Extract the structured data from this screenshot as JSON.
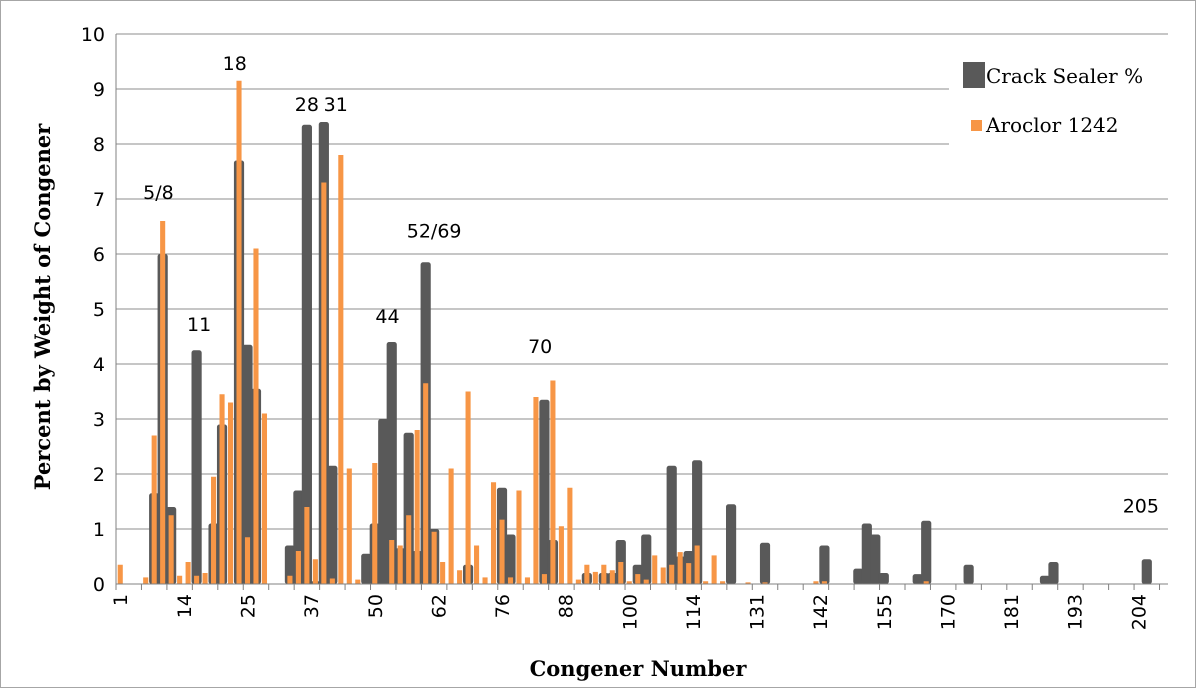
{
  "chart_data": {
    "type": "bar",
    "xlabel": "Congener Number",
    "ylabel": "Percent by Weight of Congener",
    "ylim": [
      0,
      10
    ],
    "y_ticks": [
      0,
      1,
      2,
      3,
      4,
      5,
      6,
      7,
      8,
      9,
      10
    ],
    "x_tick_labels": [
      "1",
      "14",
      "25",
      "37",
      "50",
      "62",
      "76",
      "88",
      "100",
      "114",
      "131",
      "142",
      "155",
      "170",
      "181",
      "193",
      "204"
    ],
    "grid": true,
    "legend_position": "top-right",
    "series": [
      {
        "name": "Crack Sealer %",
        "color": "#595959",
        "points": [
          [
            5,
            1.65
          ],
          [
            6,
            6.0
          ],
          [
            7,
            1.4
          ],
          [
            10,
            4.25
          ],
          [
            12,
            1.1
          ],
          [
            13,
            2.9
          ],
          [
            15,
            7.7
          ],
          [
            16,
            4.35
          ],
          [
            17,
            3.55
          ],
          [
            21,
            0.7
          ],
          [
            22,
            1.7
          ],
          [
            23,
            8.35
          ],
          [
            24,
            0.05
          ],
          [
            25,
            8.4
          ],
          [
            26,
            2.15
          ],
          [
            30,
            0.55
          ],
          [
            31,
            1.1
          ],
          [
            32,
            3.0
          ],
          [
            33,
            4.4
          ],
          [
            34,
            0.65
          ],
          [
            35,
            2.75
          ],
          [
            36,
            0.6
          ],
          [
            37,
            5.85
          ],
          [
            38,
            1.0
          ],
          [
            42,
            0.35
          ],
          [
            46,
            1.75
          ],
          [
            47,
            0.9
          ],
          [
            51,
            3.35
          ],
          [
            52,
            0.8
          ],
          [
            56,
            0.2
          ],
          [
            58,
            0.2
          ],
          [
            59,
            0.2
          ],
          [
            60,
            0.8
          ],
          [
            62,
            0.35
          ],
          [
            63,
            0.9
          ],
          [
            66,
            2.15
          ],
          [
            67,
            0.5
          ],
          [
            68,
            0.6
          ],
          [
            69,
            2.25
          ],
          [
            73,
            1.45
          ],
          [
            77,
            0.75
          ],
          [
            84,
            0.7
          ],
          [
            88,
            0.28
          ],
          [
            89,
            1.1
          ],
          [
            90,
            0.9
          ],
          [
            91,
            0.2
          ],
          [
            95,
            0.18
          ],
          [
            96,
            1.15
          ],
          [
            101,
            0.35
          ],
          [
            110,
            0.15
          ],
          [
            111,
            0.4
          ],
          [
            122,
            0.45
          ]
        ]
      },
      {
        "name": "Aroclor 1242",
        "color": "#f79646",
        "points": [
          [
            1,
            0.35
          ],
          [
            4,
            0.12
          ],
          [
            5,
            2.7
          ],
          [
            6,
            6.6
          ],
          [
            7,
            1.25
          ],
          [
            8,
            0.15
          ],
          [
            9,
            0.4
          ],
          [
            10,
            0.15
          ],
          [
            11,
            0.2
          ],
          [
            12,
            1.95
          ],
          [
            13,
            3.45
          ],
          [
            14,
            3.3
          ],
          [
            15,
            9.15
          ],
          [
            16,
            0.85
          ],
          [
            17,
            6.1
          ],
          [
            18,
            3.1
          ],
          [
            21,
            0.15
          ],
          [
            22,
            0.6
          ],
          [
            23,
            1.4
          ],
          [
            24,
            0.45
          ],
          [
            25,
            7.3
          ],
          [
            26,
            0.1
          ],
          [
            27,
            7.8
          ],
          [
            28,
            2.1
          ],
          [
            29,
            0.08
          ],
          [
            31,
            2.2
          ],
          [
            33,
            0.8
          ],
          [
            34,
            0.7
          ],
          [
            35,
            1.25
          ],
          [
            36,
            2.8
          ],
          [
            37,
            3.65
          ],
          [
            38,
            0.95
          ],
          [
            39,
            0.4
          ],
          [
            40,
            2.1
          ],
          [
            41,
            0.25
          ],
          [
            42,
            3.5
          ],
          [
            43,
            0.7
          ],
          [
            44,
            0.12
          ],
          [
            45,
            1.85
          ],
          [
            46,
            1.17
          ],
          [
            47,
            0.12
          ],
          [
            48,
            1.7
          ],
          [
            49,
            0.12
          ],
          [
            50,
            3.4
          ],
          [
            51,
            0.18
          ],
          [
            52,
            3.7
          ],
          [
            53,
            1.05
          ],
          [
            54,
            1.75
          ],
          [
            55,
            0.08
          ],
          [
            56,
            0.35
          ],
          [
            57,
            0.22
          ],
          [
            58,
            0.35
          ],
          [
            59,
            0.25
          ],
          [
            60,
            0.4
          ],
          [
            61,
            0.05
          ],
          [
            62,
            0.18
          ],
          [
            63,
            0.08
          ],
          [
            64,
            0.52
          ],
          [
            65,
            0.3
          ],
          [
            66,
            0.35
          ],
          [
            67,
            0.58
          ],
          [
            68,
            0.38
          ],
          [
            69,
            0.7
          ],
          [
            70,
            0.05
          ],
          [
            71,
            0.52
          ],
          [
            72,
            0.05
          ],
          [
            75,
            0.03
          ],
          [
            77,
            0.03
          ],
          [
            83,
            0.05
          ],
          [
            84,
            0.05
          ],
          [
            96,
            0.05
          ]
        ]
      }
    ],
    "annotations": [
      {
        "text": "5/8",
        "x": 5.5,
        "y": 7.0
      },
      {
        "text": "11",
        "x": 10.3,
        "y": 4.6
      },
      {
        "text": "18",
        "x": 14.5,
        "y": 9.35
      },
      {
        "text": "28",
        "x": 23.0,
        "y": 8.6
      },
      {
        "text": "31",
        "x": 26.4,
        "y": 8.6
      },
      {
        "text": "44",
        "x": 32.5,
        "y": 4.75
      },
      {
        "text": "52/69",
        "x": 38.0,
        "y": 6.3
      },
      {
        "text": "70",
        "x": 50.5,
        "y": 4.2
      },
      {
        "text": "205",
        "x": 121.3,
        "y": 1.3
      }
    ]
  }
}
